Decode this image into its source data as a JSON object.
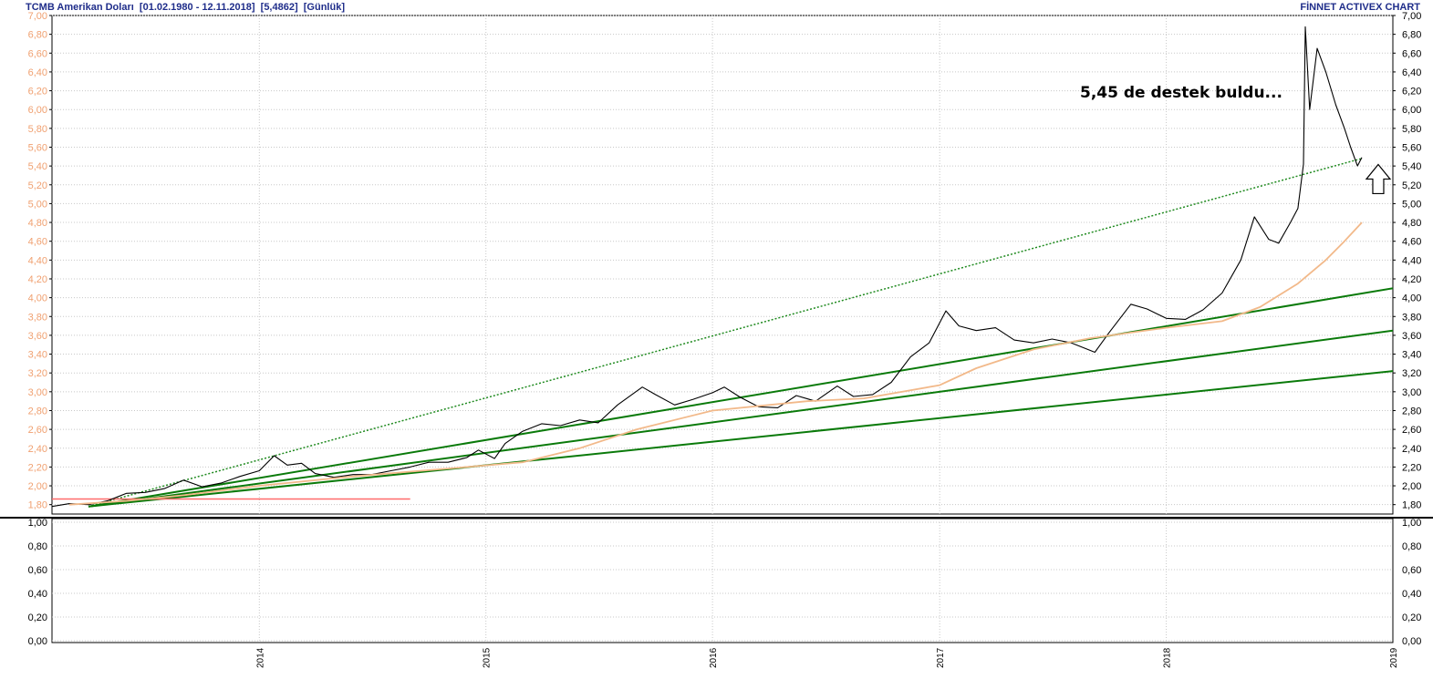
{
  "header": {
    "title": "TCMB Amerikan Doları",
    "range": "[01.02.1980 - 12.11.2018]",
    "last_value": "[5,4862]",
    "period": "[Günlük]",
    "brand": "FİNNET ACTIVEX CHART"
  },
  "annotation": "5,45 de destek buldu...",
  "colors": {
    "price": "#000000",
    "moving_average": "#f2b98a",
    "trendline": "#0a7a0a",
    "dotted_trendline": "#1f8a1f",
    "horizontal_line": "#ff6a6a",
    "grid": "#c8c8c8",
    "left_axis_text": "#f0a070",
    "right_axis_text": "#000000"
  },
  "chart_data": {
    "type": "line",
    "x_range": [
      "2013-02-01",
      "2019-01-01"
    ],
    "x_ticks": [
      "2014",
      "2015",
      "2016",
      "2017",
      "2018",
      "2019"
    ],
    "x_tick_dates": [
      "2014-01-01",
      "2015-01-01",
      "2016-01-01",
      "2017-01-01",
      "2018-01-01",
      "2019-01-01"
    ],
    "y_range": [
      1.7,
      7.0
    ],
    "y_ticks": [
      "7,00",
      "6,80",
      "6,60",
      "6,40",
      "6,20",
      "6,00",
      "5,80",
      "5,60",
      "5,40",
      "5,20",
      "5,00",
      "4,80",
      "4,60",
      "4,40",
      "4,20",
      "4,00",
      "3,80",
      "3,60",
      "3,40",
      "3,20",
      "3,00",
      "2,80",
      "2,60",
      "2,40",
      "2,20",
      "2,00",
      "1,80"
    ],
    "lower_y_range": [
      0,
      1
    ],
    "lower_y_ticks": [
      "1,00",
      "0,80",
      "0,60",
      "0,40",
      "0,20",
      "0,00"
    ],
    "grid": true,
    "series": [
      {
        "role": "price",
        "points": [
          [
            "2013-02-01",
            1.78
          ],
          [
            "2013-03-01",
            1.81
          ],
          [
            "2013-04-01",
            1.8
          ],
          [
            "2013-05-01",
            1.84
          ],
          [
            "2013-06-01",
            1.92
          ],
          [
            "2013-07-01",
            1.93
          ],
          [
            "2013-08-01",
            1.97
          ],
          [
            "2013-09-01",
            2.06
          ],
          [
            "2013-10-01",
            1.99
          ],
          [
            "2013-11-01",
            2.03
          ],
          [
            "2013-12-01",
            2.1
          ],
          [
            "2014-01-01",
            2.16
          ],
          [
            "2014-01-25",
            2.32
          ],
          [
            "2014-02-15",
            2.22
          ],
          [
            "2014-03-10",
            2.24
          ],
          [
            "2014-04-01",
            2.13
          ],
          [
            "2014-05-01",
            2.09
          ],
          [
            "2014-06-01",
            2.12
          ],
          [
            "2014-07-01",
            2.12
          ],
          [
            "2014-08-01",
            2.16
          ],
          [
            "2014-09-01",
            2.2
          ],
          [
            "2014-10-01",
            2.25
          ],
          [
            "2014-11-01",
            2.25
          ],
          [
            "2014-12-01",
            2.3
          ],
          [
            "2014-12-20",
            2.38
          ],
          [
            "2015-01-15",
            2.29
          ],
          [
            "2015-02-01",
            2.45
          ],
          [
            "2015-03-01",
            2.58
          ],
          [
            "2015-04-01",
            2.66
          ],
          [
            "2015-05-01",
            2.64
          ],
          [
            "2015-06-01",
            2.7
          ],
          [
            "2015-07-01",
            2.67
          ],
          [
            "2015-08-01",
            2.86
          ],
          [
            "2015-09-10",
            3.05
          ],
          [
            "2015-10-01",
            2.97
          ],
          [
            "2015-11-01",
            2.86
          ],
          [
            "2015-12-01",
            2.92
          ],
          [
            "2016-01-01",
            2.99
          ],
          [
            "2016-01-20",
            3.05
          ],
          [
            "2016-02-15",
            2.94
          ],
          [
            "2016-03-15",
            2.84
          ],
          [
            "2016-04-15",
            2.83
          ],
          [
            "2016-05-15",
            2.96
          ],
          [
            "2016-06-15",
            2.9
          ],
          [
            "2016-07-20",
            3.06
          ],
          [
            "2016-08-15",
            2.95
          ],
          [
            "2016-09-15",
            2.97
          ],
          [
            "2016-10-15",
            3.1
          ],
          [
            "2016-11-15",
            3.37
          ],
          [
            "2016-12-15",
            3.52
          ],
          [
            "2017-01-11",
            3.86
          ],
          [
            "2017-02-01",
            3.7
          ],
          [
            "2017-03-01",
            3.65
          ],
          [
            "2017-04-01",
            3.68
          ],
          [
            "2017-05-01",
            3.55
          ],
          [
            "2017-06-01",
            3.52
          ],
          [
            "2017-07-01",
            3.56
          ],
          [
            "2017-08-01",
            3.52
          ],
          [
            "2017-09-08",
            3.42
          ],
          [
            "2017-10-01",
            3.63
          ],
          [
            "2017-11-05",
            3.93
          ],
          [
            "2017-12-01",
            3.88
          ],
          [
            "2018-01-01",
            3.78
          ],
          [
            "2018-02-01",
            3.77
          ],
          [
            "2018-03-01",
            3.87
          ],
          [
            "2018-04-01",
            4.05
          ],
          [
            "2018-05-01",
            4.4
          ],
          [
            "2018-05-23",
            4.86
          ],
          [
            "2018-06-15",
            4.62
          ],
          [
            "2018-07-01",
            4.58
          ],
          [
            "2018-07-20",
            4.8
          ],
          [
            "2018-08-01",
            4.95
          ],
          [
            "2018-08-10",
            5.42
          ],
          [
            "2018-08-13",
            6.88
          ],
          [
            "2018-08-20",
            6.0
          ],
          [
            "2018-09-01",
            6.65
          ],
          [
            "2018-09-15",
            6.4
          ],
          [
            "2018-10-01",
            6.05
          ],
          [
            "2018-10-15",
            5.8
          ],
          [
            "2018-10-25",
            5.6
          ],
          [
            "2018-11-05",
            5.4
          ],
          [
            "2018-11-12",
            5.49
          ]
        ]
      },
      {
        "role": "moving_average",
        "points": [
          [
            "2013-03-01",
            1.8
          ],
          [
            "2013-06-01",
            1.84
          ],
          [
            "2013-09-01",
            1.9
          ],
          [
            "2014-01-01",
            2.0
          ],
          [
            "2014-06-01",
            2.1
          ],
          [
            "2014-12-01",
            2.2
          ],
          [
            "2015-03-01",
            2.25
          ],
          [
            "2015-06-01",
            2.4
          ],
          [
            "2015-09-01",
            2.6
          ],
          [
            "2016-01-01",
            2.8
          ],
          [
            "2016-06-01",
            2.9
          ],
          [
            "2016-09-01",
            2.93
          ],
          [
            "2017-01-01",
            3.07
          ],
          [
            "2017-03-01",
            3.25
          ],
          [
            "2017-06-01",
            3.45
          ],
          [
            "2017-09-01",
            3.57
          ],
          [
            "2018-01-01",
            3.68
          ],
          [
            "2018-04-01",
            3.75
          ],
          [
            "2018-06-01",
            3.9
          ],
          [
            "2018-08-01",
            4.15
          ],
          [
            "2018-09-15",
            4.4
          ],
          [
            "2018-10-15",
            4.6
          ],
          [
            "2018-11-12",
            4.8
          ]
        ]
      }
    ],
    "trendlines": [
      {
        "style": "dotted",
        "from": [
          "2013-04-01",
          1.78
        ],
        "to": [
          "2018-11-12",
          5.48
        ]
      },
      {
        "style": "solid",
        "from": [
          "2013-04-01",
          1.78
        ],
        "to": [
          "2019-01-01",
          4.1
        ]
      },
      {
        "style": "solid",
        "from": [
          "2013-04-01",
          1.78
        ],
        "to": [
          "2019-01-01",
          3.65
        ]
      },
      {
        "style": "solid",
        "from": [
          "2013-04-01",
          1.78
        ],
        "to": [
          "2019-01-01",
          3.22
        ]
      },
      {
        "style": "horizontal",
        "from": [
          "2013-02-01",
          1.86
        ],
        "to": [
          "2014-09-01",
          1.86
        ]
      }
    ],
    "arrow": {
      "at": [
        "2018-11-12",
        5.3
      ],
      "direction": "up"
    }
  }
}
